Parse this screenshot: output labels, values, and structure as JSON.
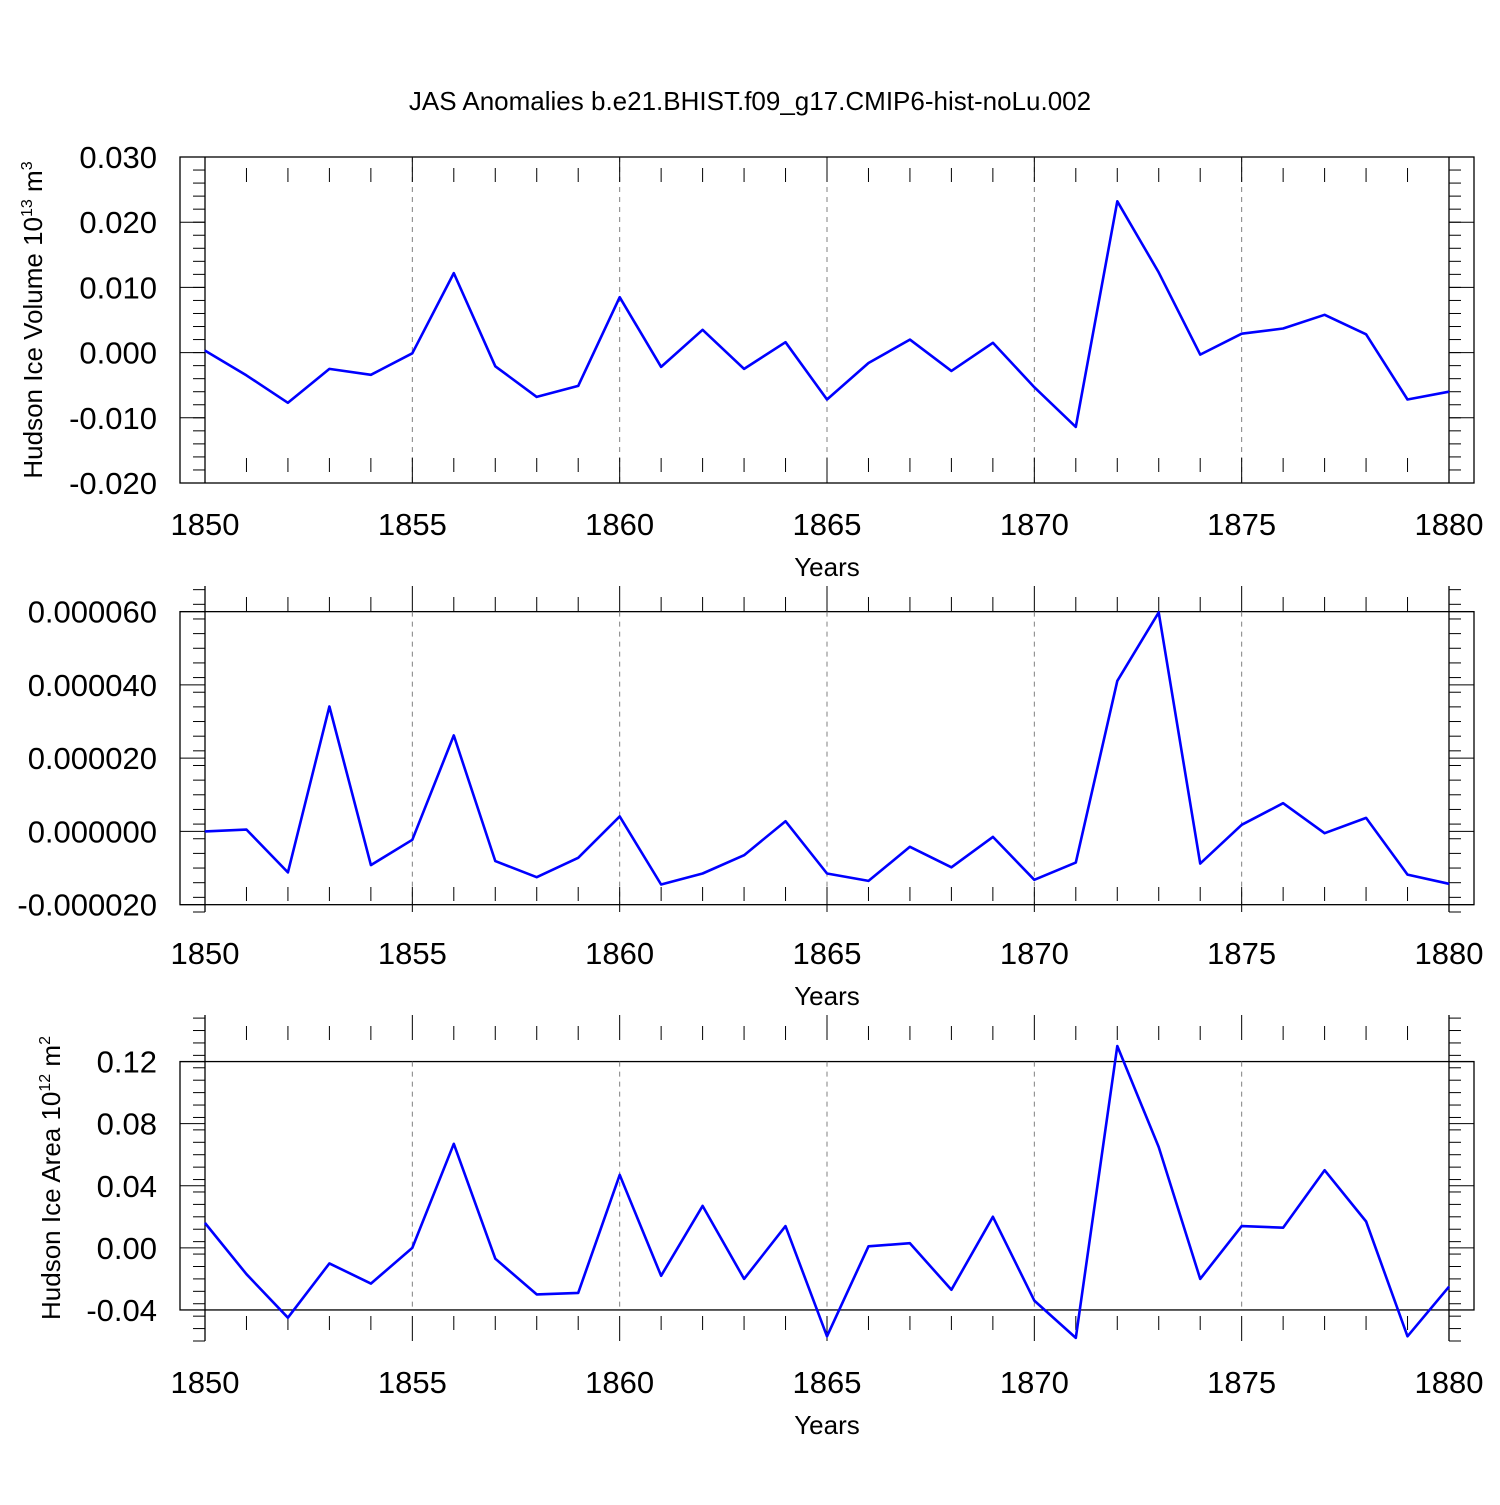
{
  "figure": {
    "title": "JAS Anomalies b.e21.BHIST.f09_g17.CMIP6-hist-noLu.002"
  },
  "colors": {
    "series": "#0000ff",
    "frame": "#000000",
    "grid": "#808080",
    "background": "#ffffff"
  },
  "chart_data": [
    {
      "type": "line",
      "title": "JAS Anomalies b.e21.BHIST.f09_g17.CMIP6-hist-noLu.002",
      "xlabel": "Years",
      "ylabel": "Hudson Ice Volume 10",
      "ylabel_sup": "13",
      "ylabel_unit": " m",
      "ylabel_unit_sup": "3",
      "xlim": [
        1850,
        1880
      ],
      "ylim": [
        -0.02,
        0.03
      ],
      "x_ticks": [
        "1850",
        "1855",
        "1860",
        "1865",
        "1870",
        "1875",
        "1880"
      ],
      "y_ticks": [
        "0.030",
        "0.020",
        "0.010",
        "0.000",
        "-0.010",
        "-0.020"
      ],
      "y_tick_values": [
        0.03,
        0.02,
        0.01,
        0.0,
        -0.01,
        -0.02
      ],
      "x_grid": "dashed vertical at 1855, 1860, 1865, 1870, 1875",
      "x": [
        1850,
        1851,
        1852,
        1853,
        1854,
        1855,
        1856,
        1857,
        1858,
        1859,
        1860,
        1861,
        1862,
        1863,
        1864,
        1865,
        1866,
        1867,
        1868,
        1869,
        1870,
        1871,
        1872,
        1873,
        1874,
        1875,
        1876,
        1877,
        1878,
        1879,
        1880
      ],
      "y": [
        0.0003,
        -0.0035,
        -0.0077,
        -0.0025,
        -0.0034,
        -0.0001,
        0.0122,
        -0.0021,
        -0.0068,
        -0.0051,
        0.0085,
        -0.0022,
        0.0035,
        -0.0025,
        0.0016,
        -0.0072,
        -0.0016,
        0.002,
        -0.0028,
        0.0015,
        -0.0053,
        -0.0114,
        0.0232,
        0.0123,
        -0.0003,
        0.0029,
        0.0037,
        0.0058,
        0.0028,
        -0.0072,
        -0.006
      ]
    },
    {
      "type": "line",
      "xlabel": "Years",
      "ylabel": "",
      "xlim": [
        1850,
        1880
      ],
      "ylim": [
        -2.2e-05,
        6.7e-05
      ],
      "x_ticks": [
        "1850",
        "1855",
        "1860",
        "1865",
        "1870",
        "1875",
        "1880"
      ],
      "y_ticks": [
        "0.000060",
        "0.000040",
        "0.000020",
        "0.000000",
        "-0.000020"
      ],
      "y_tick_values": [
        6e-05,
        4e-05,
        2e-05,
        0.0,
        -2e-05
      ],
      "x_grid": "dashed vertical at 1855, 1860, 1865, 1870, 1875",
      "x": [
        1850,
        1851,
        1852,
        1853,
        1854,
        1855,
        1856,
        1857,
        1858,
        1859,
        1860,
        1861,
        1862,
        1863,
        1864,
        1865,
        1866,
        1867,
        1868,
        1869,
        1870,
        1871,
        1872,
        1873,
        1874,
        1875,
        1876,
        1877,
        1878,
        1879,
        1880
      ],
      "y": [
        0.0,
        5e-07,
        -1.12e-05,
        3.41e-05,
        -9.2e-06,
        -2.3e-06,
        2.62e-05,
        -8.1e-06,
        -1.25e-05,
        -7.2e-06,
        4.1e-06,
        -1.45e-05,
        -1.15e-05,
        -6.5e-06,
        2.8e-06,
        -1.15e-05,
        -1.35e-05,
        -4.2e-06,
        -9.8e-06,
        -1.5e-06,
        -1.32e-05,
        -8.5e-06,
        4.11e-05,
        5.98e-05,
        -8.8e-06,
        1.8e-06,
        7.7e-06,
        -5e-07,
        3.7e-06,
        -1.18e-05,
        -1.43e-05
      ]
    },
    {
      "type": "line",
      "xlabel": "Years",
      "ylabel": "Hudson Ice Area 10",
      "ylabel_sup": "12",
      "ylabel_unit": " m",
      "ylabel_unit_sup": "2",
      "xlim": [
        1850,
        1880
      ],
      "ylim": [
        -0.06,
        0.15
      ],
      "x_ticks": [
        "1850",
        "1855",
        "1860",
        "1865",
        "1870",
        "1875",
        "1880"
      ],
      "y_ticks": [
        "0.12",
        "0.08",
        "0.04",
        "0.00",
        "-0.04"
      ],
      "y_tick_values": [
        0.12,
        0.08,
        0.04,
        0.0,
        -0.04
      ],
      "x_grid": "dashed vertical at 1855, 1860, 1865, 1870, 1875",
      "x": [
        1850,
        1851,
        1852,
        1853,
        1854,
        1855,
        1856,
        1857,
        1858,
        1859,
        1860,
        1861,
        1862,
        1863,
        1864,
        1865,
        1866,
        1867,
        1868,
        1869,
        1870,
        1871,
        1872,
        1873,
        1874,
        1875,
        1876,
        1877,
        1878,
        1879,
        1880
      ],
      "y": [
        0.016,
        -0.017,
        -0.045,
        -0.01,
        -0.023,
        0.0,
        0.067,
        -0.007,
        -0.03,
        -0.029,
        0.047,
        -0.018,
        0.027,
        -0.02,
        0.014,
        -0.057,
        0.001,
        0.003,
        -0.027,
        0.02,
        -0.034,
        -0.058,
        0.13,
        0.065,
        -0.02,
        0.014,
        0.013,
        0.05,
        0.017,
        -0.057,
        -0.025
      ]
    }
  ]
}
